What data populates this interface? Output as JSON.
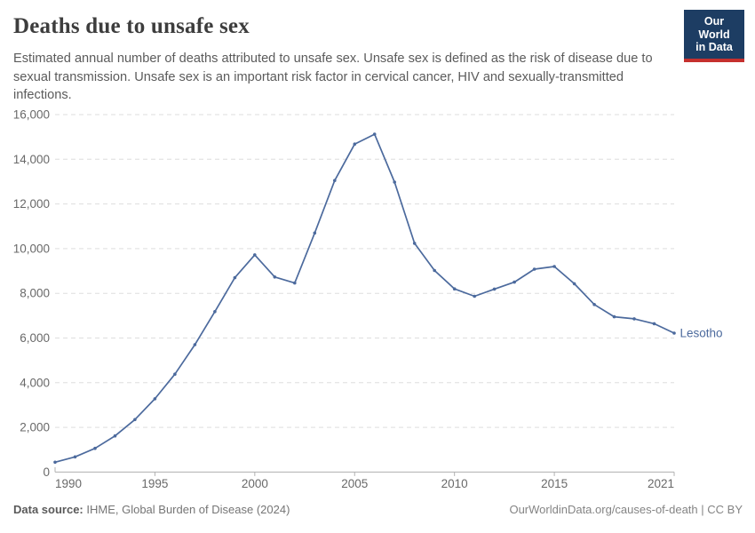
{
  "header": {
    "title": "Deaths due to unsafe sex",
    "subtitle": "Estimated annual number of deaths attributed to unsafe sex. Unsafe sex is defined as the risk of disease due to sexual transmission. Unsafe sex is an important risk factor in cervical cancer, HIV and sexually-transmitted infections.",
    "logo": {
      "line1": "Our World",
      "line2": "in Data"
    }
  },
  "chart_data": {
    "type": "line",
    "title": "Deaths due to unsafe sex",
    "series": [
      {
        "name": "Lesotho",
        "color": "#4c6a9d",
        "x": [
          1990,
          1991,
          1992,
          1993,
          1994,
          1995,
          1996,
          1997,
          1998,
          1999,
          2000,
          2001,
          2002,
          2003,
          2004,
          2005,
          2006,
          2007,
          2008,
          2009,
          2010,
          2011,
          2012,
          2013,
          2014,
          2015,
          2016,
          2017,
          2018,
          2019,
          2020,
          2021
        ],
        "values": [
          440,
          680,
          1060,
          1620,
          2350,
          3280,
          4380,
          5700,
          7180,
          8700,
          9720,
          8730,
          8460,
          10700,
          13050,
          14680,
          15120,
          12980,
          10240,
          9020,
          8200,
          7870,
          8190,
          8500,
          9080,
          9200,
          8430,
          7500,
          6950,
          6860,
          6640,
          6220
        ]
      }
    ],
    "xlabel": "",
    "ylabel": "",
    "xlim": [
      1990,
      2021
    ],
    "ylim": [
      0,
      16000
    ],
    "yticks": [
      0,
      2000,
      4000,
      6000,
      8000,
      10000,
      12000,
      14000,
      16000
    ],
    "ytick_labels": [
      "0",
      "2,000",
      "4,000",
      "6,000",
      "8,000",
      "10,000",
      "12,000",
      "14,000",
      "16,000"
    ],
    "xticks": [
      1990,
      1995,
      2000,
      2005,
      2010,
      2015,
      2021
    ],
    "xtick_labels": [
      "1990",
      "1995",
      "2000",
      "2005",
      "2010",
      "2015",
      "2021"
    ],
    "grid": "horizontal-dashed",
    "legend_position": "end-of-line",
    "series_end_label": "Lesotho"
  },
  "footer": {
    "datasource_label": "Data source:",
    "datasource_value": " IHME, Global Burden of Disease (2024)",
    "credit_link": "OurWorldinData.org/causes-of-death",
    "credit_suffix": " | CC BY"
  },
  "colors": {
    "logo_navy": "#1d3d63",
    "logo_red": "#c5302e",
    "line_blue": "#4c6a9d",
    "gridline": "#dddddd",
    "axis": "#b0b0b0",
    "title_text": "#3d3d3d",
    "subtitle_text": "#5b5b5b",
    "tick_text": "#696969"
  }
}
